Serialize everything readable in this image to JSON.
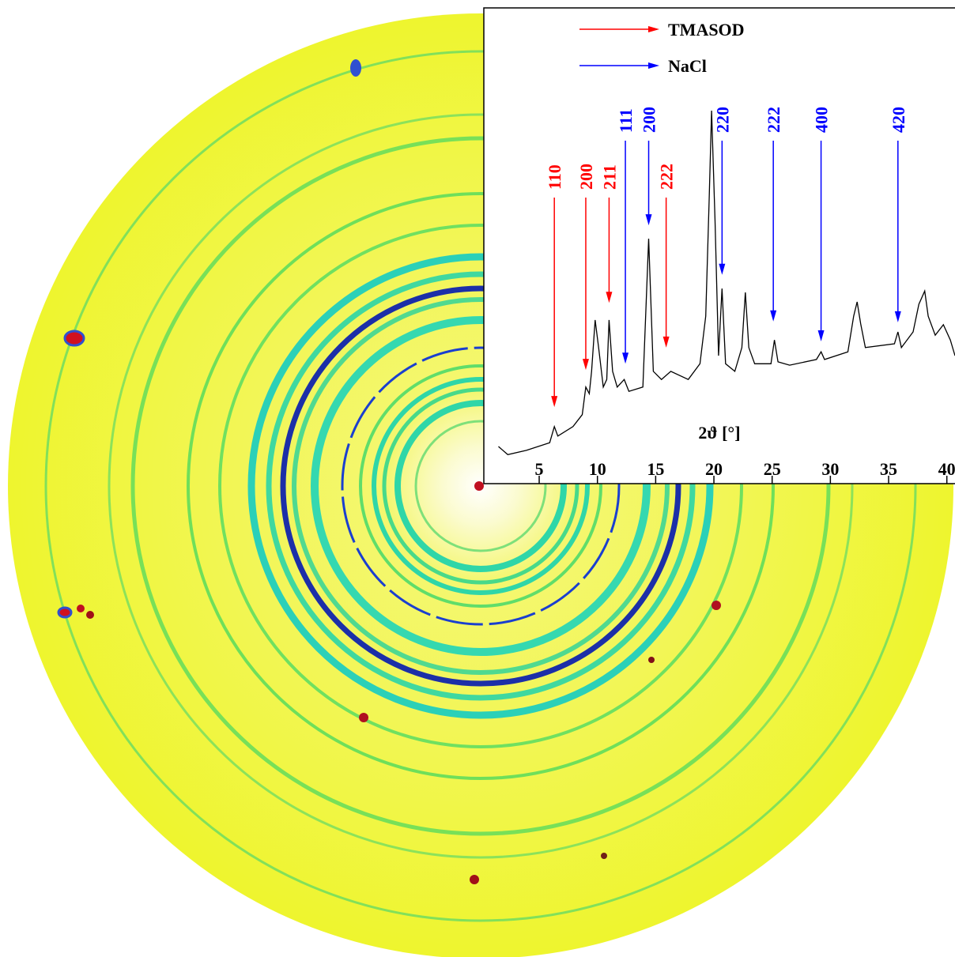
{
  "chart_data": {
    "type": "line",
    "xlabel": "2ϑ [°]",
    "xlim": [
      1.4,
      40.7
    ],
    "xticks": [
      5,
      10,
      15,
      20,
      25,
      30,
      35,
      40
    ],
    "ylim": [
      0,
      100
    ],
    "series": [
      {
        "color": "#000000",
        "x": [
          1.5,
          2.3,
          3.9,
          5.9,
          6.3,
          6.6,
          7.9,
          8.7,
          9.0,
          9.3,
          9.5,
          9.8,
          10.1,
          10.5,
          10.8,
          11.0,
          11.3,
          11.7,
          12.3,
          12.7,
          13.9,
          14.4,
          14.8,
          15.5,
          16.3,
          17.8,
          18.8,
          19.3,
          19.6,
          19.8,
          20.1,
          20.4,
          20.7,
          21.0,
          21.8,
          22.4,
          22.7,
          23.0,
          23.5,
          24.9,
          25.2,
          25.5,
          26.5,
          28.8,
          29.2,
          29.5,
          31.5,
          32.0,
          32.3,
          32.6,
          33.0,
          35.5,
          35.8,
          36.1,
          37.1,
          37.6,
          38.1,
          38.4,
          39.0,
          39.7,
          40.3,
          40.7
        ],
        "values": [
          7.8,
          6.1,
          7.0,
          8.6,
          12.0,
          10.0,
          12.0,
          14.5,
          20.3,
          18.9,
          23.6,
          34.4,
          28.6,
          20.3,
          21.9,
          34.4,
          23.6,
          20.3,
          21.9,
          19.4,
          20.3,
          51.5,
          23.6,
          21.9,
          23.6,
          21.9,
          25.2,
          35.2,
          60.1,
          78.4,
          55.1,
          26.9,
          41.0,
          25.2,
          23.6,
          28.6,
          40.2,
          28.6,
          25.2,
          25.2,
          30.2,
          25.6,
          24.9,
          26.1,
          27.7,
          26.1,
          27.7,
          35.2,
          38.2,
          33.6,
          28.6,
          29.4,
          31.9,
          28.6,
          31.9,
          37.7,
          40.5,
          35.2,
          31.2,
          33.4,
          30.2,
          26.9
        ]
      }
    ],
    "annotations": [
      {
        "name": "TMASOD",
        "color": "#ff0000",
        "labels": [
          "110",
          "200",
          "211",
          "222"
        ],
        "x": [
          6.3,
          9.0,
          11.0,
          15.9
        ],
        "y": [
          16.1,
          23.9,
          38.0,
          28.6
        ]
      },
      {
        "name": "NaCl",
        "color": "#0000ff",
        "labels": [
          "111",
          "200",
          "220",
          "222",
          "400",
          "420"
        ],
        "x": [
          12.4,
          14.4,
          20.7,
          25.1,
          29.2,
          35.8
        ],
        "y": [
          25.2,
          54.3,
          43.9,
          34.1,
          29.9,
          33.9
        ]
      }
    ]
  }
}
